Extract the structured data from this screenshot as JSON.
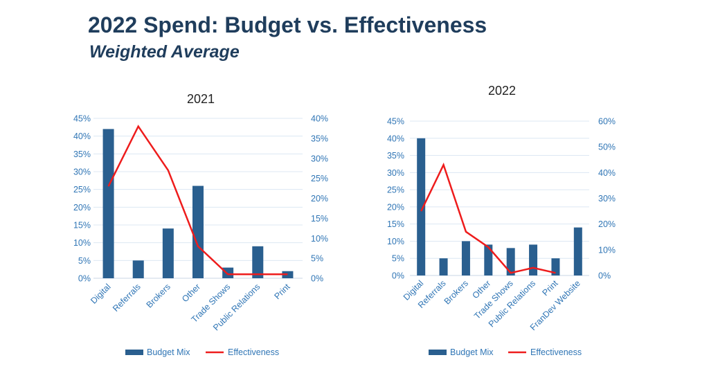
{
  "page": {
    "title": "2022 Spend:  Budget vs. Effectiveness",
    "subtitle": "Weighted Average"
  },
  "colors": {
    "bar": "#2a5f8f",
    "line": "#ee1c1c",
    "tick": "#2f75b5",
    "grid": "#dce7f3",
    "title": "#1f3d5c"
  },
  "chart_data": [
    {
      "type": "bar",
      "title": "2021",
      "categories": [
        "Digital",
        "Referrals",
        "Brokers",
        "Other",
        "Trade Shows",
        "Public Relations",
        "Print"
      ],
      "series": [
        {
          "name": "Budget Mix",
          "type": "bar",
          "axis": "left",
          "values": [
            42,
            5,
            14,
            26,
            3,
            9,
            2
          ]
        },
        {
          "name": "Effectiveness",
          "type": "line",
          "axis": "right",
          "values": [
            23,
            38,
            27,
            8,
            1,
            1,
            1
          ]
        }
      ],
      "left_ticks": [
        "0%",
        "5%",
        "10%",
        "15%",
        "20%",
        "25%",
        "30%",
        "35%",
        "40%",
        "45%"
      ],
      "right_ticks": [
        "0%",
        "5%",
        "10%",
        "15%",
        "20%",
        "25%",
        "30%",
        "35%",
        "40%"
      ],
      "ylim_left": [
        0,
        45
      ],
      "ylim_right": [
        0,
        40
      ],
      "grid": true,
      "legend": "bottom"
    },
    {
      "type": "bar",
      "title": "2022",
      "categories": [
        "Digital",
        "Referrals",
        "Brokers",
        "Other",
        "Trade Shows",
        "Public Relations",
        "Print",
        "FranDev Website"
      ],
      "series": [
        {
          "name": "Budget Mix",
          "type": "bar",
          "axis": "left",
          "values": [
            40,
            5,
            10,
            9,
            8,
            9,
            5,
            14
          ]
        },
        {
          "name": "Effectiveness",
          "type": "line",
          "axis": "right",
          "values": [
            25,
            43,
            17,
            11,
            1,
            3,
            1,
            null
          ]
        }
      ],
      "left_ticks": [
        "0%",
        "5%",
        "10%",
        "15%",
        "20%",
        "25%",
        "30%",
        "35%",
        "40%",
        "45%"
      ],
      "right_ticks": [
        "0%",
        "10%",
        "20%",
        "30%",
        "40%",
        "50%",
        "60%"
      ],
      "ylim_left": [
        0,
        45
      ],
      "ylim_right": [
        0,
        60
      ],
      "grid": true,
      "legend": "bottom"
    }
  ]
}
